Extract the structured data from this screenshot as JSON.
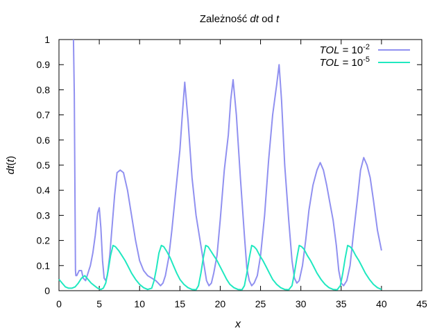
{
  "chart_data": {
    "type": "line",
    "title": "Zależność dt od t",
    "title_parts": {
      "pre": "Zależność ",
      "dt": "dt",
      "mid": " od ",
      "t": "t"
    },
    "xlabel": "x",
    "ylabel": "dt(t)",
    "ylabel_parts": {
      "a": "dt",
      "b": "(",
      "c": "t",
      "d": ")"
    },
    "xlim": [
      0,
      45
    ],
    "ylim": [
      0,
      1
    ],
    "xticks": [
      0,
      5,
      10,
      15,
      20,
      25,
      30,
      35,
      40,
      45
    ],
    "xtick_labels": [
      "0",
      "5",
      "10",
      "15",
      "20",
      "25",
      "30",
      "35",
      "40",
      "45"
    ],
    "yticks": [
      0,
      0.1,
      0.2,
      0.3,
      0.4,
      0.5,
      0.6,
      0.7,
      0.8,
      0.9,
      1
    ],
    "ytick_labels": [
      "0",
      "0.1",
      "0.2",
      "0.3",
      "0.4",
      "0.5",
      "0.6",
      "0.7",
      "0.8",
      "0.9",
      "1"
    ],
    "grid": false,
    "legend": "top-right",
    "series": [
      {
        "name": "TOL = 10^-2",
        "legend_parts": {
          "var": "TOL",
          "eq": " = 10",
          "exp": "-2"
        },
        "color": "#9090f0",
        "x": [
          1.8,
          1.9,
          2.0,
          2.05,
          2.1,
          2.2,
          2.5,
          2.8,
          3.0,
          3.3,
          3.6,
          3.9,
          4.2,
          4.5,
          4.8,
          5.0,
          5.2,
          5.4,
          5.6,
          5.8,
          6.0,
          6.3,
          6.6,
          6.9,
          7.2,
          7.6,
          8.0,
          8.5,
          9.0,
          9.5,
          10.0,
          10.5,
          11.0,
          11.5,
          12.0,
          12.3,
          12.6,
          12.9,
          13.2,
          13.6,
          14.0,
          14.5,
          15.0,
          15.3,
          15.6,
          16.0,
          16.5,
          17.0,
          17.5,
          18.0,
          18.3,
          18.6,
          18.9,
          19.2,
          19.6,
          20.0,
          20.5,
          21.0,
          21.3,
          21.6,
          22.0,
          22.5,
          23.0,
          23.3,
          23.6,
          23.9,
          24.2,
          24.6,
          25.0,
          25.5,
          26.0,
          26.5,
          27.0,
          27.3,
          27.6,
          28.0,
          28.5,
          28.9,
          29.2,
          29.5,
          29.8,
          30.2,
          30.6,
          31.0,
          31.5,
          32.0,
          32.4,
          32.8,
          33.2,
          33.6,
          34.0,
          34.4,
          34.7,
          35.0,
          35.3,
          35.7,
          36.1,
          36.5,
          37.0,
          37.4,
          37.8,
          38.2,
          38.6,
          39.0,
          39.5,
          40.0
        ],
        "y": [
          1.0,
          0.78,
          0.32,
          0.08,
          0.06,
          0.06,
          0.08,
          0.08,
          0.05,
          0.04,
          0.07,
          0.1,
          0.15,
          0.22,
          0.31,
          0.33,
          0.25,
          0.12,
          0.05,
          0.04,
          0.06,
          0.14,
          0.26,
          0.38,
          0.47,
          0.48,
          0.47,
          0.4,
          0.3,
          0.2,
          0.12,
          0.08,
          0.06,
          0.05,
          0.04,
          0.03,
          0.02,
          0.03,
          0.06,
          0.13,
          0.24,
          0.4,
          0.56,
          0.7,
          0.83,
          0.68,
          0.45,
          0.3,
          0.2,
          0.1,
          0.04,
          0.02,
          0.03,
          0.07,
          0.14,
          0.28,
          0.48,
          0.62,
          0.76,
          0.84,
          0.7,
          0.45,
          0.22,
          0.09,
          0.04,
          0.02,
          0.03,
          0.06,
          0.14,
          0.3,
          0.52,
          0.7,
          0.82,
          0.9,
          0.76,
          0.5,
          0.28,
          0.12,
          0.05,
          0.03,
          0.04,
          0.1,
          0.2,
          0.32,
          0.42,
          0.48,
          0.51,
          0.48,
          0.42,
          0.35,
          0.28,
          0.18,
          0.08,
          0.03,
          0.02,
          0.04,
          0.1,
          0.22,
          0.36,
          0.48,
          0.53,
          0.5,
          0.45,
          0.36,
          0.24,
          0.16
        ]
      },
      {
        "name": "TOL = 10^-5",
        "legend_parts": {
          "var": "TOL",
          "eq": " = 10",
          "exp": "-5"
        },
        "color": "#20e8c0",
        "x": [
          0.0,
          0.4,
          0.8,
          1.2,
          1.6,
          2.0,
          2.4,
          2.8,
          3.2,
          3.6,
          4.0,
          4.4,
          4.8,
          5.2,
          5.5,
          5.8,
          6.1,
          6.4,
          6.7,
          7.0,
          7.4,
          7.8,
          8.2,
          8.6,
          9.0,
          9.5,
          10.0,
          10.5,
          11.0,
          11.5,
          11.8,
          12.1,
          12.4,
          12.7,
          13.0,
          13.4,
          13.8,
          14.2,
          14.6,
          15.0,
          15.5,
          16.0,
          16.5,
          17.0,
          17.3,
          17.6,
          17.9,
          18.2,
          18.5,
          18.8,
          19.2,
          19.6,
          20.0,
          20.4,
          20.8,
          21.2,
          21.7,
          22.2,
          22.7,
          23.0,
          23.3,
          23.6,
          23.9,
          24.2,
          24.5,
          24.9,
          25.3,
          25.7,
          26.1,
          26.5,
          27.0,
          27.5,
          28.0,
          28.5,
          28.9,
          29.2,
          29.5,
          29.8,
          30.1,
          30.4,
          30.8,
          31.2,
          31.6,
          32.0,
          32.5,
          33.0,
          33.5,
          34.0,
          34.5,
          34.9,
          35.2,
          35.5,
          35.8,
          36.1,
          36.4,
          36.8,
          37.2,
          37.6,
          38.0,
          38.5,
          39.0,
          39.5,
          40.0
        ],
        "y": [
          0.045,
          0.03,
          0.015,
          0.01,
          0.01,
          0.015,
          0.03,
          0.05,
          0.06,
          0.045,
          0.03,
          0.02,
          0.01,
          0.005,
          0.01,
          0.03,
          0.08,
          0.14,
          0.18,
          0.175,
          0.16,
          0.14,
          0.12,
          0.095,
          0.07,
          0.045,
          0.025,
          0.012,
          0.005,
          0.01,
          0.04,
          0.09,
          0.15,
          0.18,
          0.175,
          0.155,
          0.13,
          0.1,
          0.07,
          0.045,
          0.025,
          0.012,
          0.005,
          0.004,
          0.02,
          0.07,
          0.13,
          0.18,
          0.175,
          0.16,
          0.14,
          0.12,
          0.095,
          0.07,
          0.045,
          0.025,
          0.012,
          0.005,
          0.004,
          0.02,
          0.07,
          0.13,
          0.18,
          0.175,
          0.165,
          0.14,
          0.12,
          0.095,
          0.07,
          0.045,
          0.025,
          0.012,
          0.005,
          0.004,
          0.02,
          0.07,
          0.13,
          0.18,
          0.175,
          0.165,
          0.14,
          0.12,
          0.095,
          0.07,
          0.045,
          0.025,
          0.012,
          0.005,
          0.004,
          0.02,
          0.07,
          0.13,
          0.18,
          0.175,
          0.165,
          0.14,
          0.12,
          0.095,
          0.07,
          0.045,
          0.025,
          0.012,
          0.005
        ]
      }
    ]
  }
}
